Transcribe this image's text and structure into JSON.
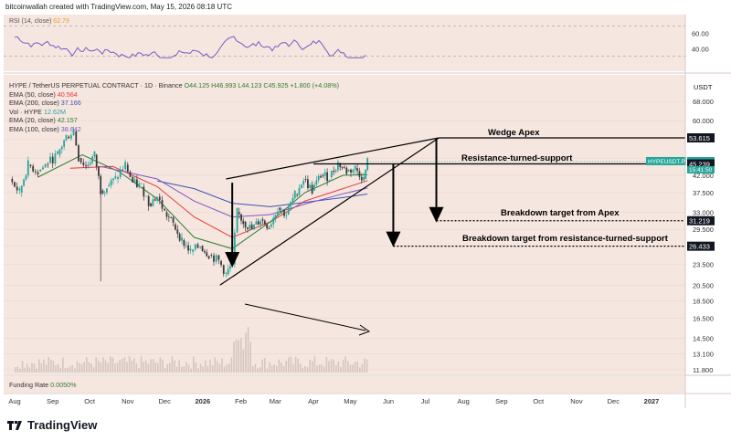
{
  "header": {
    "credit": "bitcoinwallah created with TradingView.com, May 15, 2026 08:18 UTC"
  },
  "rsi": {
    "label": "RSI (14, close)",
    "value": "62.79",
    "ticks": [
      "60.00",
      "40.00"
    ],
    "line_color": "#7e57c2",
    "upper_band": 70,
    "lower_band": 30
  },
  "legend": {
    "symbol_line": "HYPE / TetherUS PERPETUAL CONTRACT · 1D · Binance",
    "ohlc": "O44.125 H46.993 L44.123 C45.925 +1.800 (+4.08%)",
    "rows": [
      {
        "label": "EMA (50, close)",
        "value": "40.564",
        "color": "#e53935"
      },
      {
        "label": "EMA (200, close)",
        "value": "37.166",
        "color": "#3f51b5"
      },
      {
        "label": "Vol · HYPE",
        "value": "12.62M",
        "color": "#26a69a"
      },
      {
        "label": "EMA (20, close)",
        "value": "42.157",
        "color": "#2e7d32"
      },
      {
        "label": "EMA (100, close)",
        "value": "38.642",
        "color": "#7e57c2"
      }
    ]
  },
  "funding": {
    "label": "Funding Rate",
    "value": "0.0050%"
  },
  "chart_data": {
    "type": "line",
    "symbol": "HYPEUSDT.P",
    "currency": "USDT",
    "x_ticks": [
      "Aug",
      "Sep",
      "Oct",
      "Nov",
      "Dec",
      "2026",
      "Feb",
      "Mar",
      "Apr",
      "May",
      "Jun",
      "Jul",
      "Aug",
      "Sep",
      "Oct",
      "Nov",
      "Dec",
      "2027"
    ],
    "y_ticks": [
      68.0,
      60.0,
      53.0,
      47.0,
      42.0,
      37.5,
      33.0,
      29.5,
      26.5,
      23.5,
      20.5,
      18.5,
      16.5,
      14.5,
      13.1,
      11.8
    ],
    "y_tick_labels": [
      "68.000",
      "60.000",
      "53.615",
      "47.000",
      "42.000",
      "37.500",
      "33.000",
      "29.500",
      "26.500",
      "23.500",
      "20.500",
      "18.500",
      "16.500",
      "14.500",
      "13.100",
      "11.800"
    ],
    "price_labels": [
      {
        "value": 53.615,
        "text": "53.615",
        "color": "#131722"
      },
      {
        "value": 45.925,
        "text": "45.925",
        "color": "#26a69a"
      },
      {
        "value": 45.239,
        "text": "45.239",
        "color": "#131722"
      },
      {
        "value": 31.219,
        "text": "31.219",
        "color": "#131722"
      },
      {
        "value": 26.433,
        "text": "26.433",
        "color": "#131722"
      }
    ],
    "countdown": "15:41:50",
    "close_series": [
      {
        "x": "2025-07-28",
        "y": 41.0
      },
      {
        "x": "2025-08-05",
        "y": 37.5
      },
      {
        "x": "2025-08-12",
        "y": 45.0
      },
      {
        "x": "2025-08-20",
        "y": 43.0
      },
      {
        "x": "2025-08-28",
        "y": 45.5
      },
      {
        "x": "2025-09-05",
        "y": 48.0
      },
      {
        "x": "2025-09-12",
        "y": 54.0
      },
      {
        "x": "2025-09-18",
        "y": 56.0
      },
      {
        "x": "2025-09-22",
        "y": 47.0
      },
      {
        "x": "2025-09-28",
        "y": 44.5
      },
      {
        "x": "2025-10-05",
        "y": 48.0
      },
      {
        "x": "2025-10-10",
        "y": 38.0
      },
      {
        "x": "2025-10-15",
        "y": 39.0
      },
      {
        "x": "2025-10-22",
        "y": 41.0
      },
      {
        "x": "2025-10-30",
        "y": 45.0
      },
      {
        "x": "2025-11-05",
        "y": 40.0
      },
      {
        "x": "2025-11-12",
        "y": 39.0
      },
      {
        "x": "2025-11-18",
        "y": 35.0
      },
      {
        "x": "2025-11-25",
        "y": 36.5
      },
      {
        "x": "2025-12-01",
        "y": 33.0
      },
      {
        "x": "2025-12-08",
        "y": 30.5
      },
      {
        "x": "2025-12-15",
        "y": 27.5
      },
      {
        "x": "2025-12-22",
        "y": 25.5
      },
      {
        "x": "2025-12-30",
        "y": 26.5
      },
      {
        "x": "2026-01-06",
        "y": 25.0
      },
      {
        "x": "2026-01-14",
        "y": 24.0
      },
      {
        "x": "2026-01-20",
        "y": 22.0
      },
      {
        "x": "2026-01-25",
        "y": 23.5
      },
      {
        "x": "2026-01-29",
        "y": 33.0
      },
      {
        "x": "2026-02-03",
        "y": 31.0
      },
      {
        "x": "2026-02-10",
        "y": 29.5
      },
      {
        "x": "2026-02-17",
        "y": 31.5
      },
      {
        "x": "2026-02-24",
        "y": 30.0
      },
      {
        "x": "2026-03-03",
        "y": 34.0
      },
      {
        "x": "2026-03-10",
        "y": 32.5
      },
      {
        "x": "2026-03-17",
        "y": 37.0
      },
      {
        "x": "2026-03-24",
        "y": 41.0
      },
      {
        "x": "2026-03-31",
        "y": 38.0
      },
      {
        "x": "2026-04-07",
        "y": 42.0
      },
      {
        "x": "2026-04-14",
        "y": 41.5
      },
      {
        "x": "2026-04-21",
        "y": 45.5
      },
      {
        "x": "2026-04-28",
        "y": 43.0
      },
      {
        "x": "2026-05-05",
        "y": 44.0
      },
      {
        "x": "2026-05-12",
        "y": 41.0
      },
      {
        "x": "2026-05-15",
        "y": 45.925
      }
    ],
    "ema_series": [
      {
        "name": "EMA (50, close)",
        "color": "#e53935",
        "points": [
          {
            "x": "2025-09-15",
            "y": 44.0
          },
          {
            "x": "2025-10-20",
            "y": 44.5
          },
          {
            "x": "2025-11-25",
            "y": 39.0
          },
          {
            "x": "2025-12-25",
            "y": 32.0
          },
          {
            "x": "2026-01-25",
            "y": 28.0
          },
          {
            "x": "2026-02-25",
            "y": 31.0
          },
          {
            "x": "2026-03-25",
            "y": 35.5
          },
          {
            "x": "2026-04-25",
            "y": 38.5
          },
          {
            "x": "2026-05-15",
            "y": 40.564
          }
        ]
      },
      {
        "name": "EMA (200, close)",
        "color": "#3f51b5",
        "points": [
          {
            "x": "2025-11-25",
            "y": 40.5
          },
          {
            "x": "2025-12-25",
            "y": 38.5
          },
          {
            "x": "2026-01-25",
            "y": 35.0
          },
          {
            "x": "2026-02-25",
            "y": 34.2
          },
          {
            "x": "2026-03-25",
            "y": 35.2
          },
          {
            "x": "2026-04-25",
            "y": 36.3
          },
          {
            "x": "2026-05-15",
            "y": 37.166
          }
        ]
      },
      {
        "name": "EMA (20, close)",
        "color": "#2e7d32",
        "points": [
          {
            "x": "2025-08-20",
            "y": 41.5
          },
          {
            "x": "2025-09-25",
            "y": 48.0
          },
          {
            "x": "2025-10-25",
            "y": 43.0
          },
          {
            "x": "2025-11-25",
            "y": 36.0
          },
          {
            "x": "2025-12-25",
            "y": 28.0
          },
          {
            "x": "2026-01-25",
            "y": 26.0
          },
          {
            "x": "2026-02-25",
            "y": 31.0
          },
          {
            "x": "2026-03-25",
            "y": 37.5
          },
          {
            "x": "2026-04-25",
            "y": 42.0
          },
          {
            "x": "2026-05-15",
            "y": 42.157
          }
        ]
      },
      {
        "name": "EMA (100, close)",
        "color": "#7e57c2",
        "points": [
          {
            "x": "2025-10-10",
            "y": 44.5
          },
          {
            "x": "2025-11-25",
            "y": 41.0
          },
          {
            "x": "2025-12-25",
            "y": 35.5
          },
          {
            "x": "2026-01-25",
            "y": 32.0
          },
          {
            "x": "2026-02-25",
            "y": 32.5
          },
          {
            "x": "2026-03-25",
            "y": 34.8
          },
          {
            "x": "2026-04-25",
            "y": 37.2
          },
          {
            "x": "2026-05-15",
            "y": 38.642
          }
        ]
      }
    ],
    "annotations": {
      "wedge_apex_label": "Wedge Apex",
      "resistance_label": "Resistance-turned-support",
      "target_apex_label": "Breakdown target from Apex",
      "target_resistance_label": "Breakdown target from resistance-turned-support",
      "wedge_apex": {
        "x": "2026-07-12",
        "y": 53.615
      },
      "wedge_upper_start": {
        "x": "2026-01-20",
        "y": 41.0
      },
      "wedge_lower_start": {
        "x": "2026-01-15",
        "y": 20.5
      },
      "resistance_start": {
        "x": "2026-04-01",
        "y": 45.239
      },
      "resistance_end": {
        "x": "2026-08-10",
        "y": 45.239
      },
      "target_apex": 31.219,
      "target_resistance": 26.433
    }
  },
  "footer": {
    "logo_text": "TradingView"
  }
}
